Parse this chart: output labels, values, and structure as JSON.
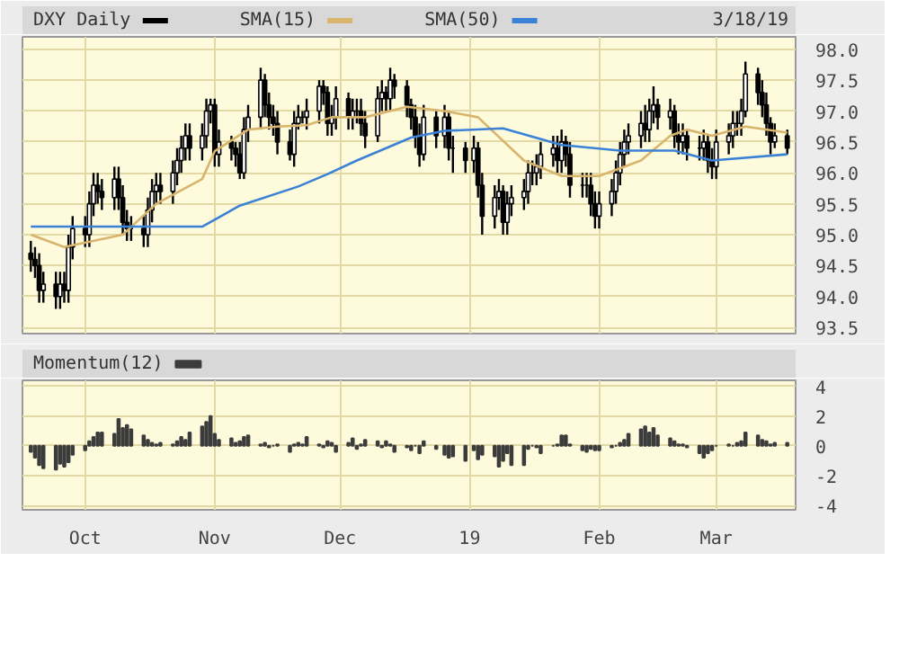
{
  "chart_data": [
    {
      "type": "candlestick",
      "annotations": [
        "3/18/19"
      ],
      "legend": "top",
      "grid": true,
      "tick_labels": "y",
      "xlim": [
        "2018-09-16",
        "2019-03-20"
      ],
      "xticks": [
        {
          "value": "2018-10-01",
          "label": null
        },
        {
          "value": "2018-11-01",
          "label": null
        },
        {
          "value": "2018-12-01",
          "label": null
        },
        {
          "value": "2019-01-01",
          "label": null
        },
        {
          "value": "2019-02-01",
          "label": null
        },
        {
          "value": "2019-03-01",
          "label": null
        }
      ],
      "ylim": [
        93.4,
        98.2
      ],
      "yticks": [
        {
          "value": 93.5,
          "label": "93.5"
        },
        {
          "value": 94,
          "label": "94.0"
        },
        {
          "value": 94.5,
          "label": "94.5"
        },
        {
          "value": 95,
          "label": "95.0"
        },
        {
          "value": 95.5,
          "label": "95.5"
        },
        {
          "value": 96,
          "label": "96.0"
        },
        {
          "value": 96.5,
          "label": "96.5"
        },
        {
          "value": 97,
          "label": "97.0"
        },
        {
          "value": 97.5,
          "label": "97.5"
        },
        {
          "value": 98,
          "label": "98.0"
        }
      ],
      "series": [
        {
          "name": "DXY Daily",
          "color": "#000000",
          "x": [
            "2018-09-18",
            "2018-09-19",
            "2018-09-20",
            "2018-09-21",
            "2018-09-24",
            "2018-09-25",
            "2018-09-26",
            "2018-09-27",
            "2018-09-28",
            "2018-10-01",
            "2018-10-02",
            "2018-10-03",
            "2018-10-04",
            "2018-10-05",
            "2018-10-08",
            "2018-10-09",
            "2018-10-10",
            "2018-10-11",
            "2018-10-12",
            "2018-10-15",
            "2018-10-16",
            "2018-10-17",
            "2018-10-18",
            "2018-10-19",
            "2018-10-22",
            "2018-10-23",
            "2018-10-24",
            "2018-10-25",
            "2018-10-26",
            "2018-10-29",
            "2018-10-30",
            "2018-10-31",
            "2018-11-01",
            "2018-11-02",
            "2018-11-05",
            "2018-11-06",
            "2018-11-07",
            "2018-11-08",
            "2018-11-09",
            "2018-11-12",
            "2018-11-13",
            "2018-11-14",
            "2018-11-15",
            "2018-11-16",
            "2018-11-19",
            "2018-11-20",
            "2018-11-21",
            "2018-11-22",
            "2018-11-23",
            "2018-11-26",
            "2018-11-27",
            "2018-11-28",
            "2018-11-29",
            "2018-11-30",
            "2018-12-03",
            "2018-12-04",
            "2018-12-05",
            "2018-12-06",
            "2018-12-07",
            "2018-12-10",
            "2018-12-11",
            "2018-12-12",
            "2018-12-13",
            "2018-12-14",
            "2018-12-17",
            "2018-12-18",
            "2018-12-19",
            "2018-12-20",
            "2018-12-21",
            "2018-12-24",
            "2018-12-26",
            "2018-12-27",
            "2018-12-28",
            "2018-12-31",
            "2019-01-02",
            "2019-01-03",
            "2019-01-04",
            "2019-01-07",
            "2019-01-08",
            "2019-01-09",
            "2019-01-10",
            "2019-01-11",
            "2019-01-14",
            "2019-01-15",
            "2019-01-16",
            "2019-01-17",
            "2019-01-18",
            "2019-01-21",
            "2019-01-22",
            "2019-01-23",
            "2019-01-24",
            "2019-01-25",
            "2019-01-28",
            "2019-01-29",
            "2019-01-30",
            "2019-01-31",
            "2019-02-01",
            "2019-02-04",
            "2019-02-05",
            "2019-02-06",
            "2019-02-07",
            "2019-02-08",
            "2019-02-11",
            "2019-02-12",
            "2019-02-13",
            "2019-02-14",
            "2019-02-15",
            "2019-02-18",
            "2019-02-19",
            "2019-02-20",
            "2019-02-21",
            "2019-02-22",
            "2019-02-25",
            "2019-02-26",
            "2019-02-27",
            "2019-02-28",
            "2019-03-01",
            "2019-03-04",
            "2019-03-05",
            "2019-03-06",
            "2019-03-07",
            "2019-03-08",
            "2019-03-11",
            "2019-03-12",
            "2019-03-13",
            "2019-03-14",
            "2019-03-15",
            "2019-03-18"
          ],
          "ohlc": [
            [
              94.7,
              94.9,
              94.4,
              94.6
            ],
            [
              94.6,
              94.8,
              94.3,
              94.5
            ],
            [
              94.5,
              94.7,
              93.9,
              94.1
            ],
            [
              94.1,
              94.4,
              93.9,
              94.2
            ],
            [
              94.2,
              94.4,
              93.8,
              94.0
            ],
            [
              94.0,
              94.4,
              93.8,
              94.2
            ],
            [
              94.2,
              94.4,
              93.9,
              94.1
            ],
            [
              94.1,
              95.0,
              93.9,
              94.8
            ],
            [
              94.8,
              95.3,
              94.6,
              95.1
            ],
            [
              95.1,
              95.3,
              94.8,
              95.0
            ],
            [
              95.0,
              95.7,
              94.8,
              95.5
            ],
            [
              95.5,
              96.0,
              95.3,
              95.8
            ],
            [
              95.8,
              96.0,
              95.5,
              95.7
            ],
            [
              95.7,
              95.9,
              95.4,
              95.6
            ],
            [
              95.6,
              96.1,
              95.4,
              95.9
            ],
            [
              95.9,
              96.1,
              95.4,
              95.6
            ],
            [
              95.6,
              95.8,
              95.0,
              95.2
            ],
            [
              95.2,
              95.4,
              94.9,
              95.1
            ],
            [
              95.1,
              95.3,
              94.9,
              95.1
            ],
            [
              95.1,
              95.3,
              94.8,
              95.0
            ],
            [
              95.0,
              95.6,
              94.8,
              95.4
            ],
            [
              95.4,
              95.9,
              95.2,
              95.7
            ],
            [
              95.7,
              96.0,
              95.5,
              95.8
            ],
            [
              95.8,
              96.0,
              95.5,
              95.7
            ],
            [
              95.7,
              96.2,
              95.5,
              96.0
            ],
            [
              96.0,
              96.4,
              95.8,
              96.2
            ],
            [
              96.2,
              96.6,
              96.0,
              96.4
            ],
            [
              96.4,
              96.8,
              96.2,
              96.6
            ],
            [
              96.6,
              96.8,
              96.2,
              96.4
            ],
            [
              96.4,
              96.8,
              96.2,
              96.6
            ],
            [
              96.6,
              97.2,
              96.4,
              97.0
            ],
            [
              97.0,
              97.2,
              96.8,
              97.1
            ],
            [
              97.1,
              97.2,
              96.1,
              96.3
            ],
            [
              96.3,
              96.7,
              96.1,
              96.5
            ],
            [
              96.5,
              96.6,
              96.2,
              96.4
            ],
            [
              96.4,
              96.5,
              96.1,
              96.3
            ],
            [
              96.3,
              96.5,
              95.9,
              96.0
            ],
            [
              96.0,
              96.9,
              95.9,
              96.7
            ],
            [
              96.7,
              97.1,
              96.5,
              96.9
            ],
            [
              96.9,
              97.7,
              96.7,
              97.5
            ],
            [
              97.5,
              97.6,
              96.9,
              97.1
            ],
            [
              97.1,
              97.3,
              96.7,
              96.9
            ],
            [
              96.9,
              97.1,
              96.6,
              96.8
            ],
            [
              96.8,
              97.0,
              96.3,
              96.5
            ],
            [
              96.5,
              96.7,
              96.2,
              96.3
            ],
            [
              96.3,
              97.0,
              96.1,
              96.8
            ],
            [
              96.8,
              97.1,
              96.7,
              96.9
            ],
            [
              96.9,
              97.0,
              96.8,
              96.9
            ],
            [
              96.9,
              97.2,
              96.7,
              97.0
            ],
            [
              97.0,
              97.5,
              96.8,
              97.4
            ],
            [
              97.4,
              97.5,
              97.1,
              97.3
            ],
            [
              97.3,
              97.4,
              96.6,
              96.8
            ],
            [
              96.8,
              97.1,
              96.6,
              96.9
            ],
            [
              96.9,
              97.4,
              96.7,
              97.2
            ],
            [
              97.2,
              97.3,
              96.7,
              96.9
            ],
            [
              96.9,
              97.2,
              96.7,
              97.0
            ],
            [
              97.0,
              97.2,
              96.8,
              97.0
            ],
            [
              97.0,
              97.2,
              96.6,
              96.8
            ],
            [
              96.8,
              97.0,
              96.4,
              96.6
            ],
            [
              96.6,
              97.4,
              96.5,
              97.2
            ],
            [
              97.2,
              97.5,
              97.0,
              97.3
            ],
            [
              97.3,
              97.4,
              97.0,
              97.2
            ],
            [
              97.2,
              97.7,
              97.0,
              97.5
            ],
            [
              97.5,
              97.6,
              97.2,
              97.4
            ],
            [
              97.4,
              97.5,
              96.9,
              97.1
            ],
            [
              97.1,
              97.2,
              96.7,
              96.9
            ],
            [
              96.9,
              97.1,
              96.4,
              96.6
            ],
            [
              96.6,
              96.8,
              96.1,
              96.3
            ],
            [
              96.3,
              97.1,
              96.2,
              96.9
            ],
            [
              96.9,
              97.0,
              96.4,
              96.6
            ],
            [
              96.6,
              97.1,
              96.4,
              96.9
            ],
            [
              96.9,
              97.0,
              96.2,
              96.4
            ],
            [
              96.4,
              96.6,
              96.0,
              96.4
            ],
            [
              96.4,
              96.5,
              96.0,
              96.2
            ],
            [
              96.2,
              96.6,
              96.0,
              96.4
            ],
            [
              96.4,
              96.5,
              95.6,
              95.8
            ],
            [
              95.8,
              96.0,
              95.0,
              95.3
            ],
            [
              95.3,
              95.8,
              95.1,
              95.6
            ],
            [
              95.6,
              95.9,
              95.4,
              95.7
            ],
            [
              95.7,
              95.8,
              95.0,
              95.2
            ],
            [
              95.2,
              95.7,
              95.0,
              95.5
            ],
            [
              95.5,
              95.8,
              95.3,
              95.6
            ],
            [
              95.6,
              95.9,
              95.4,
              95.7
            ],
            [
              95.7,
              96.2,
              95.5,
              96.0
            ],
            [
              96.0,
              96.2,
              95.8,
              96.0
            ],
            [
              96.0,
              96.3,
              95.8,
              96.1
            ],
            [
              96.1,
              96.5,
              95.9,
              96.3
            ],
            [
              96.3,
              96.6,
              96.1,
              96.4
            ],
            [
              96.4,
              96.6,
              96.0,
              96.2
            ],
            [
              96.2,
              96.7,
              96.0,
              96.5
            ],
            [
              96.5,
              96.6,
              96.1,
              96.3
            ],
            [
              96.3,
              96.5,
              95.6,
              95.8
            ],
            [
              95.8,
              96.0,
              95.6,
              95.8
            ],
            [
              95.8,
              96.0,
              95.6,
              95.8
            ],
            [
              95.8,
              96.0,
              95.3,
              95.5
            ],
            [
              95.5,
              95.7,
              95.1,
              95.3
            ],
            [
              95.3,
              95.7,
              95.1,
              95.5
            ],
            [
              95.5,
              95.9,
              95.3,
              95.7
            ],
            [
              95.7,
              96.2,
              95.5,
              96.0
            ],
            [
              96.0,
              96.5,
              95.8,
              96.3
            ],
            [
              96.3,
              96.7,
              96.1,
              96.5
            ],
            [
              96.5,
              96.8,
              96.3,
              96.6
            ],
            [
              96.6,
              97.0,
              96.4,
              96.8
            ],
            [
              96.8,
              97.1,
              96.5,
              96.7
            ],
            [
              96.7,
              97.2,
              96.5,
              97.0
            ],
            [
              97.0,
              97.4,
              96.8,
              97.1
            ],
            [
              97.1,
              97.2,
              96.7,
              96.9
            ],
            [
              96.9,
              97.2,
              96.7,
              97.0
            ],
            [
              97.0,
              97.1,
              96.4,
              96.6
            ],
            [
              96.6,
              96.8,
              96.3,
              96.5
            ],
            [
              96.5,
              96.8,
              96.3,
              96.6
            ],
            [
              96.6,
              96.7,
              96.2,
              96.4
            ],
            [
              96.4,
              96.6,
              96.2,
              96.4
            ],
            [
              96.4,
              96.7,
              96.2,
              96.5
            ],
            [
              96.5,
              96.6,
              96.0,
              96.2
            ],
            [
              96.2,
              96.4,
              95.9,
              96.1
            ],
            [
              96.1,
              96.7,
              95.9,
              96.5
            ],
            [
              96.5,
              96.8,
              96.3,
              96.6
            ],
            [
              96.6,
              97.0,
              96.4,
              96.8
            ],
            [
              96.8,
              97.0,
              96.6,
              96.8
            ],
            [
              96.8,
              97.2,
              96.6,
              97.0
            ],
            [
              97.0,
              97.8,
              96.9,
              97.6
            ],
            [
              97.6,
              97.7,
              97.1,
              97.3
            ],
            [
              97.3,
              97.5,
              96.9,
              97.1
            ],
            [
              97.1,
              97.3,
              96.6,
              96.8
            ],
            [
              96.8,
              96.9,
              96.3,
              96.5
            ],
            [
              96.5,
              96.8,
              96.4,
              96.6
            ],
            [
              96.6,
              96.7,
              96.3,
              96.4
            ]
          ]
        },
        {
          "name": "SMA(15)",
          "type": "line",
          "color": "#d9b46c",
          "x": [
            "2018-09-18",
            "2018-09-26",
            "2018-10-10",
            "2018-10-18",
            "2018-10-29",
            "2018-11-01",
            "2018-11-09",
            "2018-11-16",
            "2018-11-23",
            "2018-11-29",
            "2018-12-07",
            "2018-12-17",
            "2018-12-26",
            "2019-01-03",
            "2019-01-14",
            "2019-01-23",
            "2019-02-01",
            "2019-02-11",
            "2019-02-18",
            "2019-02-22",
            "2019-02-28",
            "2019-03-08",
            "2019-03-18"
          ],
          "values": [
            95.0,
            94.8,
            95.0,
            95.5,
            95.9,
            96.35,
            96.7,
            96.75,
            96.77,
            96.9,
            96.9,
            97.07,
            97.0,
            96.9,
            96.2,
            95.95,
            95.95,
            96.2,
            96.6,
            96.7,
            96.6,
            96.75,
            96.65
          ]
        },
        {
          "name": "SMA(50)",
          "type": "line",
          "color": "#3b82d6",
          "x": [
            "2018-09-18",
            "2018-10-29",
            "2018-11-07",
            "2018-11-21",
            "2018-11-28",
            "2018-12-05",
            "2018-12-18",
            "2018-12-26",
            "2019-01-09",
            "2019-01-23",
            "2019-02-06",
            "2019-02-19",
            "2019-02-28",
            "2019-03-18"
          ],
          "values": [
            95.13,
            95.13,
            95.47,
            95.78,
            95.98,
            96.2,
            96.57,
            96.68,
            96.72,
            96.45,
            96.36,
            96.36,
            96.2,
            96.3
          ]
        }
      ]
    },
    {
      "type": "bar",
      "legend": "top",
      "grid": true,
      "xlim": [
        "2018-09-16",
        "2019-03-20"
      ],
      "xticks": [
        {
          "value": "2018-10-01",
          "label": "Oct"
        },
        {
          "value": "2018-11-01",
          "label": "Nov"
        },
        {
          "value": "2018-12-01",
          "label": "Dec"
        },
        {
          "value": "2019-01-01",
          "label": "19"
        },
        {
          "value": "2019-02-01",
          "label": "Feb"
        },
        {
          "value": "2019-03-01",
          "label": "Mar"
        }
      ],
      "ylim": [
        -4.3,
        4.4
      ],
      "yticks": [
        -4,
        -2,
        0,
        2,
        4
      ],
      "series": [
        {
          "name": "Momentum(12)",
          "color": "#3c3c3c",
          "x": [
            "2018-09-18",
            "2018-09-19",
            "2018-09-20",
            "2018-09-21",
            "2018-09-24",
            "2018-09-25",
            "2018-09-26",
            "2018-09-27",
            "2018-09-28",
            "2018-10-01",
            "2018-10-02",
            "2018-10-03",
            "2018-10-04",
            "2018-10-05",
            "2018-10-08",
            "2018-10-09",
            "2018-10-10",
            "2018-10-11",
            "2018-10-12",
            "2018-10-15",
            "2018-10-16",
            "2018-10-17",
            "2018-10-18",
            "2018-10-19",
            "2018-10-22",
            "2018-10-23",
            "2018-10-24",
            "2018-10-25",
            "2018-10-26",
            "2018-10-29",
            "2018-10-30",
            "2018-10-31",
            "2018-11-01",
            "2018-11-02",
            "2018-11-05",
            "2018-11-06",
            "2018-11-07",
            "2018-11-08",
            "2018-11-09",
            "2018-11-12",
            "2018-11-13",
            "2018-11-14",
            "2018-11-15",
            "2018-11-16",
            "2018-11-19",
            "2018-11-20",
            "2018-11-21",
            "2018-11-22",
            "2018-11-23",
            "2018-11-26",
            "2018-11-27",
            "2018-11-28",
            "2018-11-29",
            "2018-11-30",
            "2018-12-03",
            "2018-12-04",
            "2018-12-05",
            "2018-12-06",
            "2018-12-07",
            "2018-12-10",
            "2018-12-11",
            "2018-12-12",
            "2018-12-13",
            "2018-12-14",
            "2018-12-17",
            "2018-12-18",
            "2018-12-19",
            "2018-12-20",
            "2018-12-21",
            "2018-12-24",
            "2018-12-26",
            "2018-12-27",
            "2018-12-28",
            "2018-12-31",
            "2019-01-02",
            "2019-01-03",
            "2019-01-04",
            "2019-01-07",
            "2019-01-08",
            "2019-01-09",
            "2019-01-10",
            "2019-01-11",
            "2019-01-14",
            "2019-01-15",
            "2019-01-16",
            "2019-01-17",
            "2019-01-18",
            "2019-01-21",
            "2019-01-22",
            "2019-01-23",
            "2019-01-24",
            "2019-01-25",
            "2019-01-28",
            "2019-01-29",
            "2019-01-30",
            "2019-01-31",
            "2019-02-01",
            "2019-02-04",
            "2019-02-05",
            "2019-02-06",
            "2019-02-07",
            "2019-02-08",
            "2019-02-11",
            "2019-02-12",
            "2019-02-13",
            "2019-02-14",
            "2019-02-15",
            "2019-02-18",
            "2019-02-19",
            "2019-02-20",
            "2019-02-21",
            "2019-02-22",
            "2019-02-25",
            "2019-02-26",
            "2019-02-27",
            "2019-02-28",
            "2019-03-01",
            "2019-03-04",
            "2019-03-05",
            "2019-03-06",
            "2019-03-07",
            "2019-03-08",
            "2019-03-11",
            "2019-03-12",
            "2019-03-13",
            "2019-03-14",
            "2019-03-15",
            "2019-03-18"
          ],
          "values": [
            -0.4,
            -0.8,
            -1.3,
            -1.5,
            -1.6,
            -1.2,
            -1.4,
            -1.1,
            -0.6,
            -0.3,
            0.3,
            0.6,
            0.9,
            0.9,
            0.8,
            1.8,
            1.2,
            1.4,
            1.1,
            0.7,
            0.4,
            0.2,
            0.1,
            0.2,
            0.1,
            0.3,
            0.6,
            0.4,
            0.9,
            1.3,
            1.6,
            2.0,
            0.8,
            0.4,
            0.5,
            0.2,
            0.3,
            0.6,
            0.7,
            0.1,
            0.2,
            -0.1,
            0.0,
            0.1,
            -0.4,
            0.1,
            0.2,
            0.1,
            0.6,
            0.1,
            -0.1,
            0.3,
            0.2,
            -0.4,
            0.2,
            0.5,
            -0.2,
            0.1,
            0.4,
            0.3,
            -0.1,
            0.3,
            0.1,
            -0.4,
            -0.1,
            -0.3,
            0.0,
            -0.5,
            0.3,
            -0.2,
            -0.6,
            -0.8,
            -0.7,
            -1.0,
            -0.3,
            -0.9,
            -0.6,
            -0.7,
            -1.4,
            -1.0,
            -0.5,
            -1.3,
            -1.3,
            -0.2,
            0.0,
            -0.1,
            -0.5,
            0.0,
            0.1,
            0.7,
            0.7,
            0.1,
            -0.3,
            -0.4,
            -0.2,
            -0.3,
            -0.3,
            -0.1,
            0.0,
            0.2,
            0.4,
            0.8,
            1.1,
            1.3,
            0.9,
            1.2,
            0.7,
            0.5,
            0.3,
            0.1,
            0.1,
            -0.1,
            -0.5,
            -0.8,
            -0.5,
            -0.3,
            0.0,
            0.1,
            0.0,
            0.2,
            0.3,
            0.9,
            0.7,
            0.4,
            0.3,
            0.1,
            0.2,
            0.2
          ]
        }
      ]
    }
  ]
}
